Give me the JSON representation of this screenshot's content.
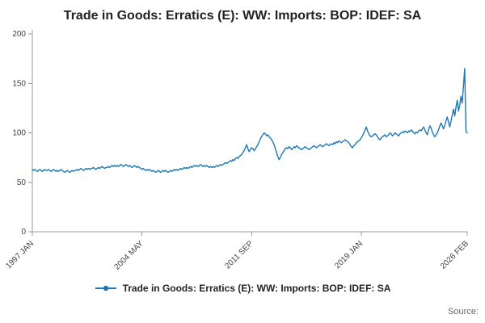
{
  "title": "Trade in Goods: Erratics (E): WW: Imports: BOP: IDEF: SA",
  "legend": {
    "label": "Trade in Goods: Erratics (E): WW: Imports: BOP: IDEF: SA"
  },
  "source_label": "Source:",
  "colors": {
    "line": "#1f77b4",
    "axis": "#9a9a9a",
    "text": "#414042"
  },
  "chart_data": {
    "type": "line",
    "title": "Trade in Goods: Erratics (E): WW: Imports: BOP: IDEF: SA",
    "xlabel": "",
    "ylabel": "",
    "ylim": [
      0,
      200
    ],
    "y_ticks": [
      0,
      50,
      100,
      150,
      200
    ],
    "grid": false,
    "legend_position": "bottom",
    "x_tick_labels": [
      "1997 JAN",
      "2004 MAY",
      "2011 SEP",
      "2019 JAN",
      "2026 FEB"
    ],
    "x_tick_month_indices": [
      0,
      88,
      176,
      264,
      349
    ],
    "x_start": "1997 JAN",
    "x_end": "2026 FEB",
    "series": [
      {
        "name": "Trade in Goods: Erratics (E): WW: Imports: BOP: IDEF: SA",
        "values": [
          63,
          62,
          63,
          62,
          61,
          62,
          63,
          62,
          61,
          62,
          63,
          62,
          62,
          63,
          62,
          61,
          62,
          63,
          62,
          61,
          62,
          61,
          62,
          63,
          62,
          61,
          60,
          61,
          62,
          61,
          60,
          61,
          62,
          61,
          62,
          62,
          63,
          62,
          63,
          64,
          63,
          62,
          63,
          64,
          63,
          64,
          63,
          64,
          64,
          65,
          64,
          63,
          64,
          65,
          64,
          65,
          66,
          65,
          64,
          65,
          65,
          66,
          65,
          66,
          67,
          66,
          67,
          66,
          67,
          66,
          67,
          68,
          67,
          66,
          67,
          68,
          67,
          66,
          67,
          66,
          65,
          66,
          67,
          66,
          65,
          66,
          65,
          64,
          63,
          64,
          63,
          62,
          63,
          62,
          63,
          62,
          61,
          62,
          61,
          60,
          61,
          62,
          61,
          60,
          61,
          62,
          61,
          62,
          61,
          60,
          61,
          62,
          61,
          62,
          63,
          62,
          63,
          62,
          63,
          64,
          63,
          64,
          65,
          64,
          65,
          64,
          65,
          66,
          65,
          66,
          67,
          66,
          67,
          66,
          67,
          68,
          67,
          66,
          67,
          66,
          67,
          66,
          65,
          66,
          65,
          66,
          65,
          66,
          67,
          66,
          67,
          68,
          67,
          68,
          69,
          70,
          69,
          70,
          71,
          72,
          71,
          73,
          72,
          74,
          75,
          74,
          76,
          77,
          78,
          80,
          82,
          85,
          88,
          84,
          81,
          83,
          85,
          84,
          82,
          84,
          86,
          88,
          91,
          94,
          96,
          98,
          100,
          99,
          97,
          98,
          96,
          95,
          93,
          91,
          88,
          84,
          80,
          76,
          73,
          75,
          78,
          80,
          82,
          84,
          85,
          84,
          86,
          85,
          83,
          84,
          86,
          85,
          87,
          86,
          85,
          84,
          83,
          84,
          85,
          86,
          85,
          84,
          83,
          84,
          85,
          86,
          87,
          86,
          85,
          86,
          87,
          88,
          87,
          86,
          87,
          88,
          89,
          88,
          87,
          88,
          89,
          88,
          90,
          89,
          91,
          90,
          92,
          91,
          90,
          91,
          92,
          93,
          92,
          91,
          90,
          88,
          86,
          85,
          87,
          88,
          90,
          91,
          92,
          93,
          95,
          97,
          100,
          103,
          106,
          102,
          99,
          97,
          96,
          97,
          98,
          99,
          98,
          96,
          94,
          93,
          95,
          96,
          97,
          98,
          96,
          97,
          98,
          100,
          99,
          97,
          98,
          100,
          99,
          98,
          97,
          99,
          100,
          101,
          100,
          102,
          101,
          100,
          102,
          101,
          103,
          102,
          100,
          99,
          101,
          100,
          102,
          103,
          102,
          104,
          106,
          103,
          100,
          98,
          103,
          107,
          105,
          101,
          98,
          96,
          98,
          100,
          103,
          107,
          110,
          107,
          104,
          108,
          112,
          116,
          111,
          106,
          112,
          118,
          124,
          117,
          126,
          133,
          122,
          128,
          137,
          130,
          148,
          165,
          101,
          100
        ]
      }
    ]
  }
}
